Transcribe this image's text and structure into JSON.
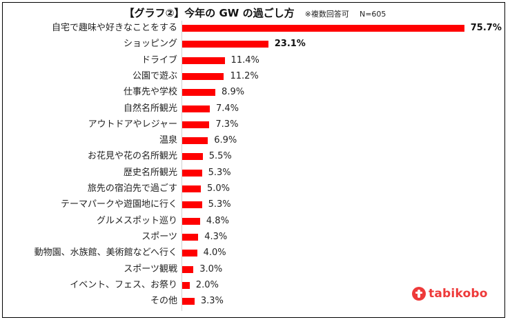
{
  "title": {
    "main": "【グラフ②】今年の GW の過ごし方",
    "note": "※複数回答可",
    "n": "N=605"
  },
  "brand": {
    "name": "tabikobo",
    "color": "#ee3a3a"
  },
  "colors": {
    "bar": "#ff0000",
    "axis": "#d0d0d0"
  },
  "chart_data": {
    "type": "bar",
    "orientation": "horizontal",
    "title": "【グラフ②】今年の GW の過ごし方 ※複数回答可 N=605",
    "xlabel": "",
    "ylabel": "",
    "unit": "%",
    "grid": false,
    "legend": null,
    "xlim": [
      0,
      80
    ],
    "categories": [
      "自宅で趣味や好きなことをする",
      "ショッピング",
      "ドライブ",
      "公園で遊ぶ",
      "仕事先や学校",
      "自然名所観光",
      "アウトドアやレジャー",
      "温泉",
      "お花見や花の名所観光",
      "歴史名所観光",
      "旅先の宿泊先で過ごす",
      "テーマパークや遊園地に行く",
      "グルメスポット巡り",
      "スポーツ",
      "動物園、水族館、美術館などへ行く",
      "スポーツ観戦",
      "イベント、フェス、お祭り",
      "その他"
    ],
    "values": [
      75.7,
      23.1,
      11.4,
      11.2,
      8.9,
      7.4,
      7.3,
      6.9,
      5.5,
      5.3,
      5.0,
      5.3,
      4.8,
      4.3,
      4.0,
      3.0,
      2.0,
      3.3
    ],
    "value_labels": [
      "75.7%",
      "23.1%",
      "11.4%",
      "11.2%",
      "8.9%",
      "7.4%",
      "7.3%",
      "6.9%",
      "5.5%",
      "5.3%",
      "5.0%",
      "5.3%",
      "4.8%",
      "4.3%",
      "4.0%",
      "3.0%",
      "2.0%",
      "3.3%"
    ],
    "bold_labels": [
      0,
      1
    ]
  }
}
